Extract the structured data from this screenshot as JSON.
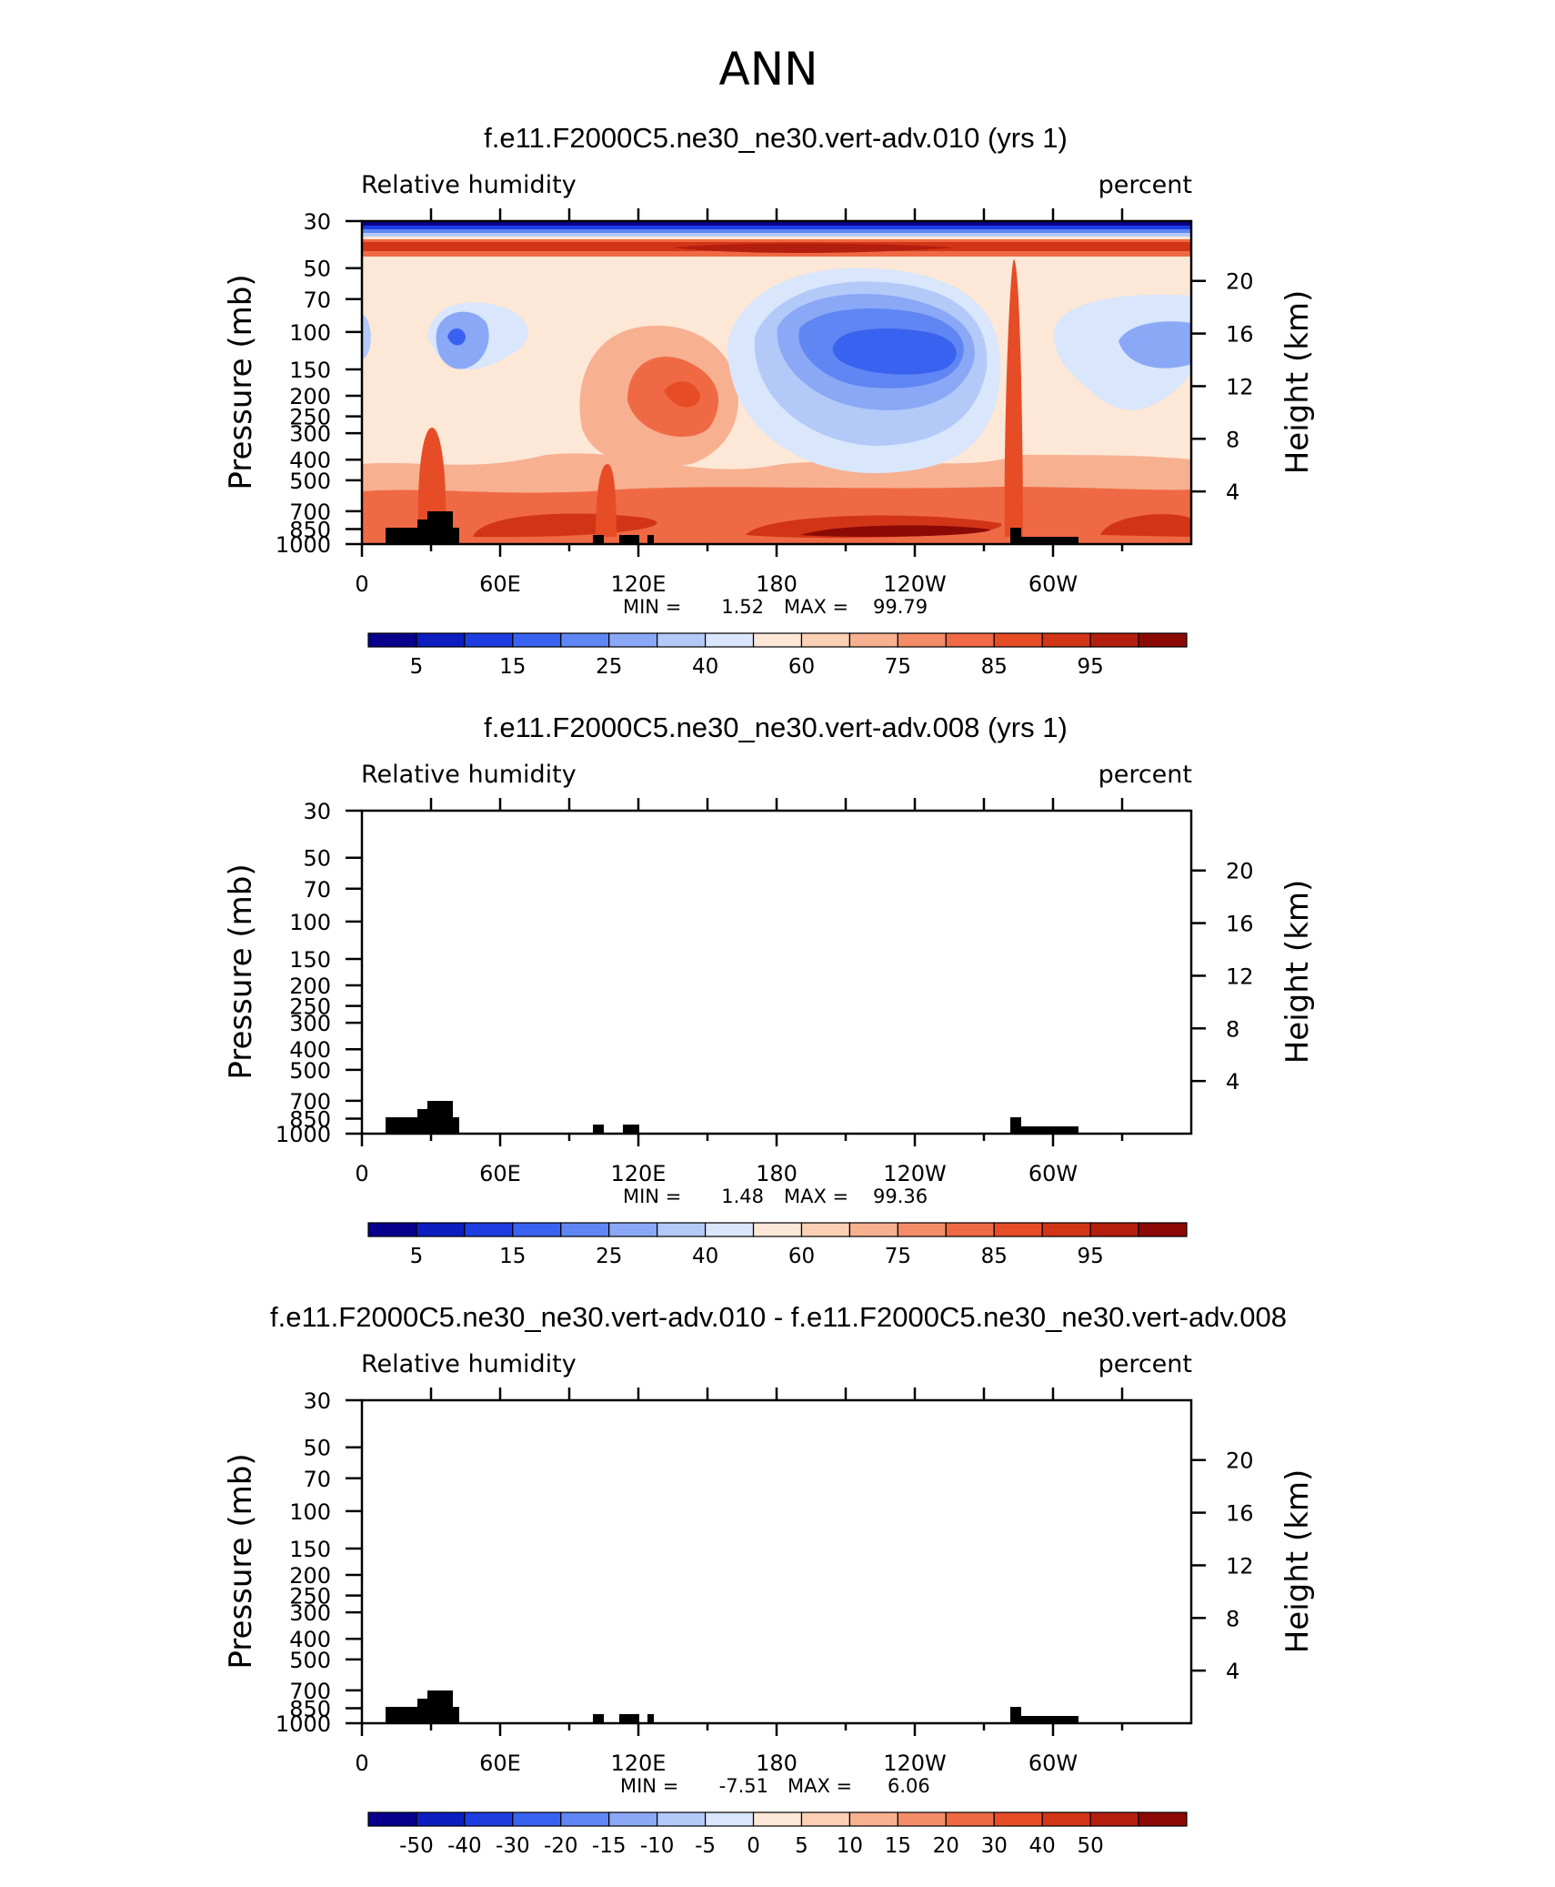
{
  "page_title": "ANN",
  "colors": {
    "blues": [
      "#08008c",
      "#0c1ec0",
      "#1e3de0",
      "#3a62f0",
      "#5f86f2",
      "#8aa8f6",
      "#b3c9f8",
      "#d9e6fb"
    ],
    "reds": [
      "#fde7d6",
      "#fbd0b4",
      "#f7b090",
      "#f48c68",
      "#ef6a44",
      "#e64d27",
      "#d23516",
      "#b41e0e",
      "#8c0a05"
    ],
    "topography": "#000000"
  },
  "chart_data": [
    {
      "type": "heatmap",
      "title": "f.e11.F2000C5.ne30_ne30.vert-adv.010 (yrs 1)",
      "variable_label": "Relative humidity",
      "units_label": "percent",
      "ylabel_left": "Pressure (mb)",
      "ylabel_right": "Height (km)",
      "x_ticks": [
        "0",
        "60E",
        "120E",
        "180",
        "120W",
        "60W"
      ],
      "x_range_deg": [
        0,
        360
      ],
      "y_pressure_ticks": [
        "30",
        "50",
        "70",
        "100",
        "150",
        "200",
        "250",
        "300",
        "400",
        "500",
        "700",
        "850",
        "1000"
      ],
      "y_height_ticks": [
        "20",
        "16",
        "12",
        "8",
        "4"
      ],
      "min_label": "MIN =",
      "min_value": "1.52",
      "max_label": "MAX =",
      "max_value": "99.79",
      "colorbar_labels": [
        "5",
        "15",
        "25",
        "40",
        "60",
        "75",
        "85",
        "95"
      ],
      "colorbar_label_bins": [
        1,
        3,
        5,
        7,
        9,
        11,
        13,
        15
      ]
    },
    {
      "type": "heatmap",
      "title": "f.e11.F2000C5.ne30_ne30.vert-adv.008 (yrs 1)",
      "variable_label": "Relative humidity",
      "units_label": "percent",
      "ylabel_left": "Pressure (mb)",
      "ylabel_right": "Height (km)",
      "x_ticks": [
        "0",
        "60E",
        "120E",
        "180",
        "120W",
        "60W"
      ],
      "x_range_deg": [
        0,
        360
      ],
      "y_pressure_ticks": [
        "30",
        "50",
        "70",
        "100",
        "150",
        "200",
        "250",
        "300",
        "400",
        "500",
        "700",
        "850",
        "1000"
      ],
      "y_height_ticks": [
        "20",
        "16",
        "12",
        "8",
        "4"
      ],
      "min_label": "MIN =",
      "min_value": "1.48",
      "max_label": "MAX =",
      "max_value": "99.36",
      "colorbar_labels": [
        "5",
        "15",
        "25",
        "40",
        "60",
        "75",
        "85",
        "95"
      ],
      "colorbar_label_bins": [
        1,
        3,
        5,
        7,
        9,
        11,
        13,
        15
      ]
    },
    {
      "type": "heatmap",
      "title": "f.e11.F2000C5.ne30_ne30.vert-adv.010 - f.e11.F2000C5.ne30_ne30.vert-adv.008",
      "variable_label": "Relative humidity",
      "units_label": "percent",
      "ylabel_left": "Pressure (mb)",
      "ylabel_right": "Height (km)",
      "x_ticks": [
        "0",
        "60E",
        "120E",
        "180",
        "120W",
        "60W"
      ],
      "x_range_deg": [
        0,
        360
      ],
      "y_pressure_ticks": [
        "30",
        "50",
        "70",
        "100",
        "150",
        "200",
        "250",
        "300",
        "400",
        "500",
        "700",
        "850",
        "1000"
      ],
      "y_height_ticks": [
        "20",
        "16",
        "12",
        "8",
        "4"
      ],
      "min_label": "MIN =",
      "min_value": "-7.51",
      "max_label": "MAX =",
      "max_value": "6.06",
      "colorbar_labels": [
        "-50",
        "-40",
        "-30",
        "-20",
        "-15",
        "-10",
        "-5",
        "0",
        "5",
        "10",
        "15",
        "20",
        "30",
        "40",
        "50"
      ],
      "colorbar_label_bins": [
        1,
        2,
        3,
        4,
        5,
        6,
        7,
        8,
        9,
        10,
        11,
        12,
        13,
        14,
        15
      ]
    }
  ]
}
